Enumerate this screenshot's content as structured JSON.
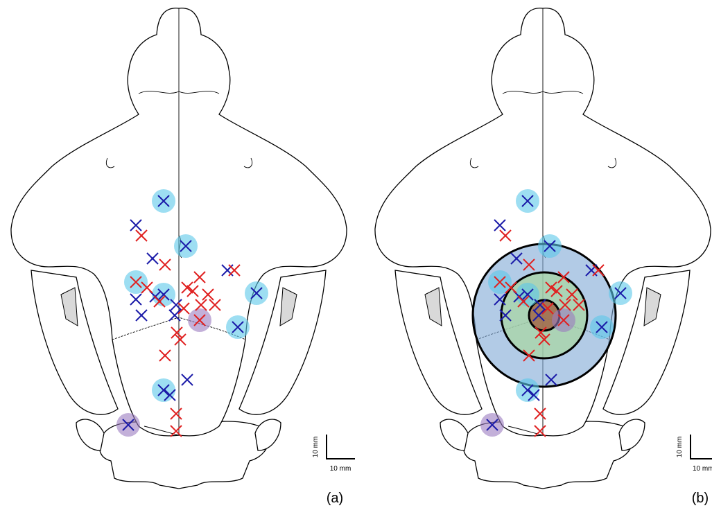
{
  "panels": [
    {
      "label": "(a)",
      "scale_bar": {
        "vertical": "10 mm",
        "horizontal": "10 mm"
      }
    },
    {
      "label": "(b)",
      "scale_bar": {
        "vertical": "10 mm",
        "horizontal": "10 mm"
      }
    }
  ]
}
